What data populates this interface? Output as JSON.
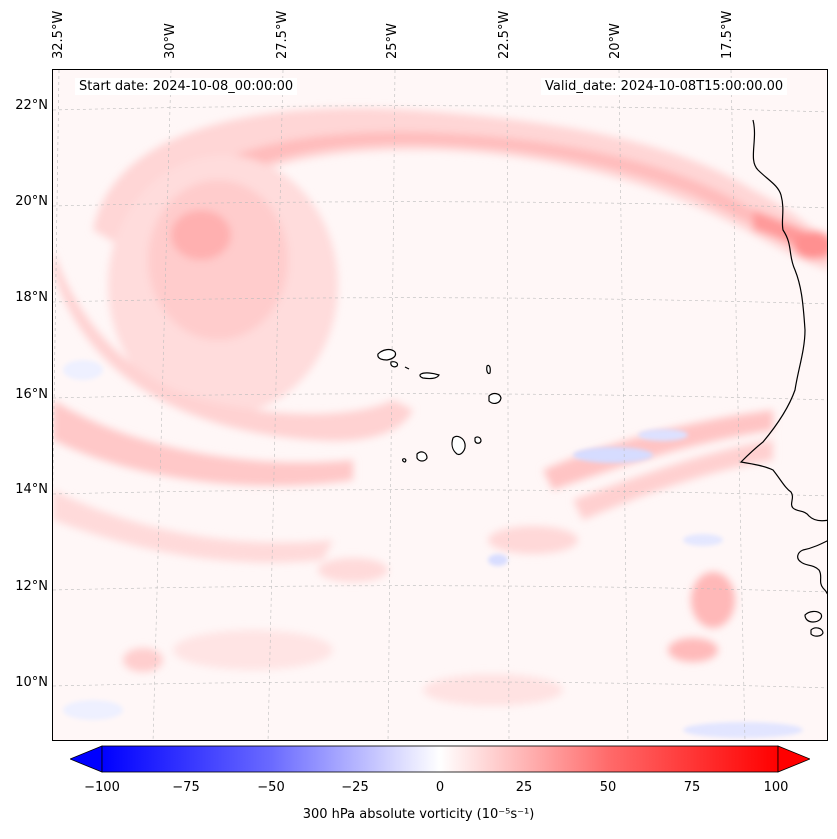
{
  "header": {
    "start_date": "Start date: 2024-10-08_00:00:00",
    "valid_date": "Valid_date: 2024-10-08T15:00:00.00"
  },
  "axes": {
    "lon_labels": [
      "32.5°W",
      "30°W",
      "27.5°W",
      "25°W",
      "22.5°W",
      "20°W",
      "17.5°W"
    ],
    "lat_labels": [
      "22°N",
      "20°N",
      "18°N",
      "16°N",
      "14°N",
      "12°N",
      "10°N"
    ]
  },
  "colorbar": {
    "ticks": [
      "−100",
      "−75",
      "−50",
      "−25",
      "0",
      "25",
      "50",
      "75",
      "100"
    ],
    "label": "300 hPa absolute vorticity (10⁻⁵s⁻¹)",
    "min": -100,
    "max": 100,
    "colors": {
      "negative": "#0000ff",
      "zero": "#ffffff",
      "positive": "#ff0000"
    }
  },
  "map": {
    "coastline_color": "#000000",
    "gridline_color": "#bbbbbb"
  }
}
